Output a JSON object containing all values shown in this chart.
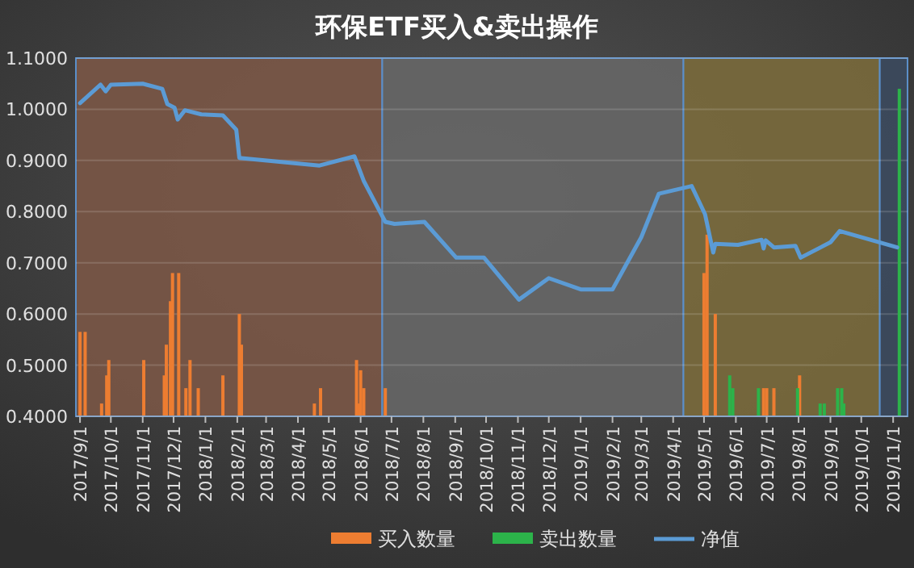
{
  "chart_data": {
    "type": "line",
    "title": "环保ETF买入&卖出操作",
    "xlim": [
      "2017-08-28",
      "2019-11-15"
    ],
    "ylim": [
      0.4,
      1.1
    ],
    "yticks": [
      {
        "value": 0.4,
        "label": "0.4000"
      },
      {
        "value": 0.5,
        "label": "0.5000"
      },
      {
        "value": 0.6,
        "label": "0.6000"
      },
      {
        "value": 0.7,
        "label": "0.7000"
      },
      {
        "value": 0.8,
        "label": "0.8000"
      },
      {
        "value": 0.9,
        "label": "0.9000"
      },
      {
        "value": 1.0,
        "label": "1.0000"
      },
      {
        "value": 1.1,
        "label": "1.1000"
      }
    ],
    "xticks": [
      {
        "value": "2017-09-01",
        "label": "2017/9/1"
      },
      {
        "value": "2017-10-01",
        "label": "2017/10/1"
      },
      {
        "value": "2017-11-01",
        "label": "2017/11/1"
      },
      {
        "value": "2017-12-01",
        "label": "2017/12/1"
      },
      {
        "value": "2018-01-01",
        "label": "2018/1/1"
      },
      {
        "value": "2018-02-01",
        "label": "2018/2/1"
      },
      {
        "value": "2018-03-01",
        "label": "2018/3/1"
      },
      {
        "value": "2018-04-01",
        "label": "2018/4/1"
      },
      {
        "value": "2018-05-01",
        "label": "2018/5/1"
      },
      {
        "value": "2018-06-01",
        "label": "2018/6/1"
      },
      {
        "value": "2018-07-01",
        "label": "2018/7/1"
      },
      {
        "value": "2018-08-01",
        "label": "2018/8/1"
      },
      {
        "value": "2018-09-01",
        "label": "2018/9/1"
      },
      {
        "value": "2018-10-01",
        "label": "2018/10/1"
      },
      {
        "value": "2018-11-01",
        "label": "2018/11/1"
      },
      {
        "value": "2018-12-01",
        "label": "2018/12/1"
      },
      {
        "value": "2019-01-01",
        "label": "2019/1/1"
      },
      {
        "value": "2019-02-01",
        "label": "2019/2/1"
      },
      {
        "value": "2019-03-01",
        "label": "2019/3/1"
      },
      {
        "value": "2019-04-01",
        "label": "2019/4/1"
      },
      {
        "value": "2019-05-01",
        "label": "2019/5/1"
      },
      {
        "value": "2019-06-01",
        "label": "2019/6/1"
      },
      {
        "value": "2019-07-01",
        "label": "2019/7/1"
      },
      {
        "value": "2019-08-01",
        "label": "2019/8/1"
      },
      {
        "value": "2019-09-01",
        "label": "2019/9/1"
      },
      {
        "value": "2019-10-01",
        "label": "2019/10/1"
      },
      {
        "value": "2019-11-01",
        "label": "2019/11/1"
      }
    ],
    "grid": "y",
    "legend": "bottom",
    "bands": [
      {
        "axis": "x",
        "from": "2017-08-28",
        "to": "2018-06-22",
        "color": "#7a5646"
      },
      {
        "axis": "x",
        "from": "2018-06-22",
        "to": "2019-04-11",
        "color": "#666666"
      },
      {
        "axis": "x",
        "from": "2019-04-11",
        "to": "2019-10-19",
        "color": "#7a6a3c"
      },
      {
        "axis": "x",
        "from": "2019-10-19",
        "to": "2019-11-15",
        "color": "#3c4a5e"
      }
    ],
    "series": [
      {
        "name": "买入数量",
        "type": "bar",
        "color": "#ed7d31",
        "x": [
          "2017-09-01",
          "2017-09-06",
          "2017-09-22",
          "2017-09-27",
          "2017-09-29",
          "2017-11-02",
          "2017-11-22",
          "2017-11-24",
          "2017-11-28",
          "2017-11-30",
          "2017-12-06",
          "2017-12-13",
          "2017-12-17",
          "2017-12-25",
          "2018-01-18",
          "2018-02-03",
          "2018-02-05",
          "2018-04-17",
          "2018-04-23",
          "2018-05-28",
          "2018-05-30",
          "2018-06-01",
          "2018-06-04",
          "2018-06-25",
          "2019-05-01",
          "2019-05-04",
          "2019-05-12",
          "2019-06-28",
          "2019-07-01",
          "2019-07-08",
          "2019-08-02"
        ],
        "values": [
          0.565,
          0.565,
          0.425,
          0.48,
          0.51,
          0.51,
          0.48,
          0.54,
          0.625,
          0.68,
          0.68,
          0.455,
          0.51,
          0.455,
          0.48,
          0.6,
          0.54,
          0.425,
          0.455,
          0.51,
          0.425,
          0.49,
          0.455,
          0.455,
          0.68,
          0.755,
          0.6,
          0.455,
          0.455,
          0.455,
          0.48
        ]
      },
      {
        "name": "卖出数量",
        "type": "bar",
        "color": "#2cb34a",
        "x": [
          "2019-05-26",
          "2019-05-29",
          "2019-06-23",
          "2019-07-31",
          "2019-08-22",
          "2019-08-26",
          "2019-09-08",
          "2019-09-12",
          "2019-09-14",
          "2019-11-07"
        ],
        "values": [
          0.48,
          0.455,
          0.455,
          0.455,
          0.425,
          0.425,
          0.455,
          0.455,
          0.425,
          1.04
        ]
      },
      {
        "name": "净值",
        "color": "#5b9bd5",
        "x": [
          "2017-09-01",
          "2017-09-21",
          "2017-09-26",
          "2017-10-01",
          "2017-11-01",
          "2017-11-20",
          "2017-11-25",
          "2017-12-02",
          "2017-12-05",
          "2017-12-12",
          "2017-12-28",
          "2018-01-18",
          "2018-01-31",
          "2018-02-03",
          "2018-04-22",
          "2018-05-26",
          "2018-06-04",
          "2018-06-25",
          "2018-07-04",
          "2018-08-02",
          "2018-09-02",
          "2018-09-29",
          "2018-11-02",
          "2018-12-01",
          "2019-01-01",
          "2019-02-01",
          "2019-03-01",
          "2019-03-18",
          "2019-04-19",
          "2019-05-02",
          "2019-05-10",
          "2019-05-12",
          "2019-06-03",
          "2019-06-26",
          "2019-06-28",
          "2019-06-30",
          "2019-07-08",
          "2019-07-29",
          "2019-08-03",
          "2019-09-01",
          "2019-09-10",
          "2019-11-05"
        ],
        "values": [
          1.012,
          1.048,
          1.035,
          1.048,
          1.05,
          1.04,
          1.01,
          1.003,
          0.98,
          0.998,
          0.99,
          0.988,
          0.96,
          0.905,
          0.89,
          0.908,
          0.86,
          0.78,
          0.776,
          0.78,
          0.71,
          0.71,
          0.628,
          0.67,
          0.648,
          0.648,
          0.75,
          0.835,
          0.85,
          0.795,
          0.72,
          0.737,
          0.735,
          0.745,
          0.728,
          0.744,
          0.73,
          0.733,
          0.71,
          0.74,
          0.762,
          0.73
        ]
      }
    ]
  }
}
